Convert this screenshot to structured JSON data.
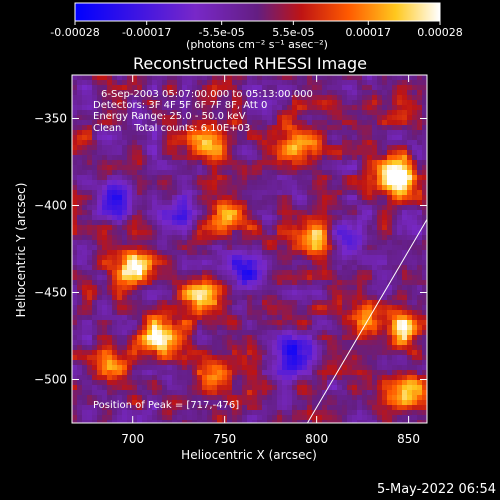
{
  "chart_data": {
    "type": "heatmap",
    "title": "Reconstructed RHESSI Image",
    "xlabel": "Heliocentric X (arcsec)",
    "ylabel": "Heliocentric Y (arcsec)",
    "xlim": [
      667,
      860
    ],
    "ylim": [
      -525,
      -325
    ],
    "x_ticks": [
      700,
      750,
      800,
      850
    ],
    "y_ticks": [
      -350,
      -400,
      -450,
      -500
    ],
    "colorbar": {
      "label": "(photons cm⁻² s⁻¹ asec⁻²)",
      "range": [
        -0.00028,
        0.00028
      ],
      "tick_values": [
        -0.00028,
        -0.00017,
        -5.5e-05,
        5.5e-05,
        0.00017,
        0.00028
      ],
      "tick_labels": [
        "-0.00028",
        "-0.00017",
        "-5.5e-05",
        "5.5e-05",
        "0.00017",
        "0.00028"
      ]
    },
    "annotations": [
      "6-Sep-2003 05:07:00.000 to 05:13:00.000",
      "Detectors: 3F 4F 5F 6F 7F 8F, Att 0",
      "Energy Range: 25.0 - 50.0 keV",
      "Clean    Total counts: 6.10E+03"
    ],
    "peak_label": "Position of Peak = [717,-476]",
    "limb_line": {
      "x": [
        795,
        860
      ],
      "y": [
        -525,
        -408
      ]
    },
    "hotspots": [
      {
        "x": 700,
        "y": -435,
        "value": 0.00026
      },
      {
        "x": 716,
        "y": -476,
        "value": 0.00028
      },
      {
        "x": 738,
        "y": -455,
        "value": 0.00022
      },
      {
        "x": 740,
        "y": -365,
        "value": 0.00024
      },
      {
        "x": 752,
        "y": -405,
        "value": 0.00027
      },
      {
        "x": 790,
        "y": -365,
        "value": 0.00023
      },
      {
        "x": 797,
        "y": -420,
        "value": 0.00025
      },
      {
        "x": 845,
        "y": -383,
        "value": 0.00028
      },
      {
        "x": 825,
        "y": -465,
        "value": 0.0002
      },
      {
        "x": 848,
        "y": -470,
        "value": 0.00022
      },
      {
        "x": 850,
        "y": -505,
        "value": 0.00021
      },
      {
        "x": 745,
        "y": -500,
        "value": 0.00018
      },
      {
        "x": 690,
        "y": -490,
        "value": 0.00016
      }
    ],
    "coldspots": [
      {
        "x": 692,
        "y": -395,
        "value": -0.00022
      },
      {
        "x": 762,
        "y": -438,
        "value": -0.00024
      },
      {
        "x": 790,
        "y": -485,
        "value": -0.00025
      },
      {
        "x": 818,
        "y": -418,
        "value": -0.00018
      },
      {
        "x": 722,
        "y": -405,
        "value": -0.00016
      }
    ]
  },
  "footer": {
    "timestamp": "5-May-2022 06:54"
  }
}
